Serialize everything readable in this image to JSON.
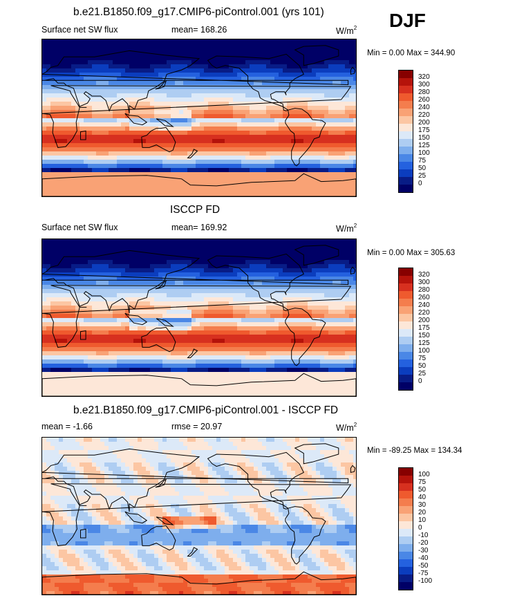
{
  "season": "DJF",
  "panels": [
    {
      "title": "b.e21.B1850.f09_g17.CMIP6-piControl.001 (yrs 101)",
      "left_label": "Surface net SW flux",
      "center_label": "mean= 168.26",
      "units": "W/m",
      "units_sup": "2",
      "minmax": "Min =   0.00 Max = 344.90",
      "colorbar_labels": [
        "320",
        "300",
        "280",
        "260",
        "240",
        "220",
        "200",
        "175",
        "150",
        "125",
        "100",
        "75",
        "50",
        "25",
        "0"
      ],
      "colors": [
        "#870000",
        "#b5130b",
        "#d7301f",
        "#ef5a2e",
        "#f47d4d",
        "#f9a275",
        "#fcc6a3",
        "#fde7d8",
        "#dce9f8",
        "#aecdf2",
        "#7eaeed",
        "#4a87e6",
        "#2461df",
        "#0b3dbe",
        "#081c86",
        "#000066"
      ]
    },
    {
      "title": "ISCCP FD",
      "left_label": "Surface net SW flux",
      "center_label": "mean= 169.92",
      "units": "W/m",
      "units_sup": "2",
      "minmax": "Min =   0.00 Max = 305.63",
      "colorbar_labels": [
        "320",
        "300",
        "280",
        "260",
        "240",
        "220",
        "200",
        "175",
        "150",
        "125",
        "100",
        "75",
        "50",
        "25",
        "0"
      ],
      "colors": [
        "#870000",
        "#b5130b",
        "#d7301f",
        "#ef5a2e",
        "#f47d4d",
        "#f9a275",
        "#fcc6a3",
        "#fde7d8",
        "#dce9f8",
        "#aecdf2",
        "#7eaeed",
        "#4a87e6",
        "#2461df",
        "#0b3dbe",
        "#081c86",
        "#000066"
      ]
    },
    {
      "title": "b.e21.B1850.f09_g17.CMIP6-piControl.001 - ISCCP FD",
      "left_label": "mean =  -1.66",
      "center_label": "rmse =  20.97",
      "units": "W/m",
      "units_sup": "2",
      "minmax": "Min = -89.25 Max = 134.34",
      "colorbar_labels": [
        "100",
        "75",
        "50",
        "40",
        "30",
        "20",
        "10",
        "0",
        "-10",
        "-20",
        "-30",
        "-40",
        "-50",
        "-75",
        "-100"
      ],
      "colors": [
        "#870000",
        "#b5130b",
        "#d7301f",
        "#ef5a2e",
        "#f47d4d",
        "#f9a275",
        "#fcc6a3",
        "#fde7d8",
        "#dce9f8",
        "#aecdf2",
        "#7eaeed",
        "#4a87e6",
        "#2461df",
        "#0b3dbe",
        "#081c86",
        "#000066"
      ]
    }
  ]
}
